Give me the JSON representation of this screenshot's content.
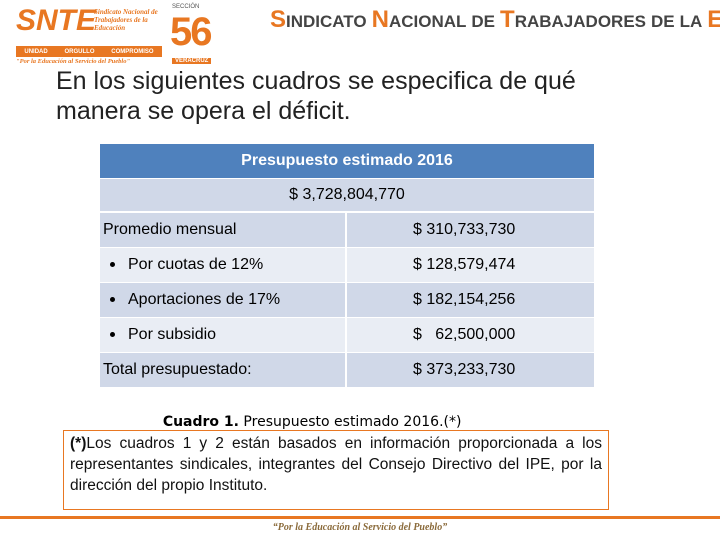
{
  "logo": {
    "acronym": "SNTE",
    "name": "Sindicato Nacional de Trabajadores de la Educación",
    "values": [
      "UNIDAD",
      "ORGULLO",
      "COMPROMISO"
    ],
    "motto": "\"Por la Educación al Servicio del Pueblo\"",
    "section_label": "SECCIÓN",
    "section_number": "56",
    "state": "VERACRUZ"
  },
  "header": {
    "title": [
      "SINDICATO",
      "NACIONAL",
      "DE",
      "TRABAJADORES",
      "DE",
      "LA",
      "EDUCACIÓN"
    ]
  },
  "heading": "En los siguientes cuadros se especifica de qué manera se opera el déficit.",
  "table": {
    "title": "Presupuesto estimado 2016",
    "total": "$ 3,728,804,770",
    "rows": [
      {
        "label": "Promedio mensual",
        "amount": "$ 310,733,730",
        "bullet": false
      },
      {
        "label": "Por cuotas de 12%",
        "amount": "$ 128,579,474",
        "bullet": true
      },
      {
        "label": "Aportaciones de 17%",
        "amount": "$ 182,154,256",
        "bullet": true
      },
      {
        "label": "Por subsidio",
        "amount": "$   62,500,000",
        "bullet": true
      },
      {
        "label": "Total presupuestado:",
        "amount": "$ 373,233,730",
        "bullet": false
      }
    ]
  },
  "caption": {
    "label": "Cuadro 1.",
    "text": " Presupuesto estimado 2016.(*)"
  },
  "note": {
    "mark": "(*)",
    "text": "Los cuadros 1 y  2 están basados en información proporcionada a los representantes sindicales, integrantes del Consejo Directivo del IPE, por la dirección del propio Instituto."
  },
  "footer": "“Por la Educación al Servicio del Pueblo”"
}
